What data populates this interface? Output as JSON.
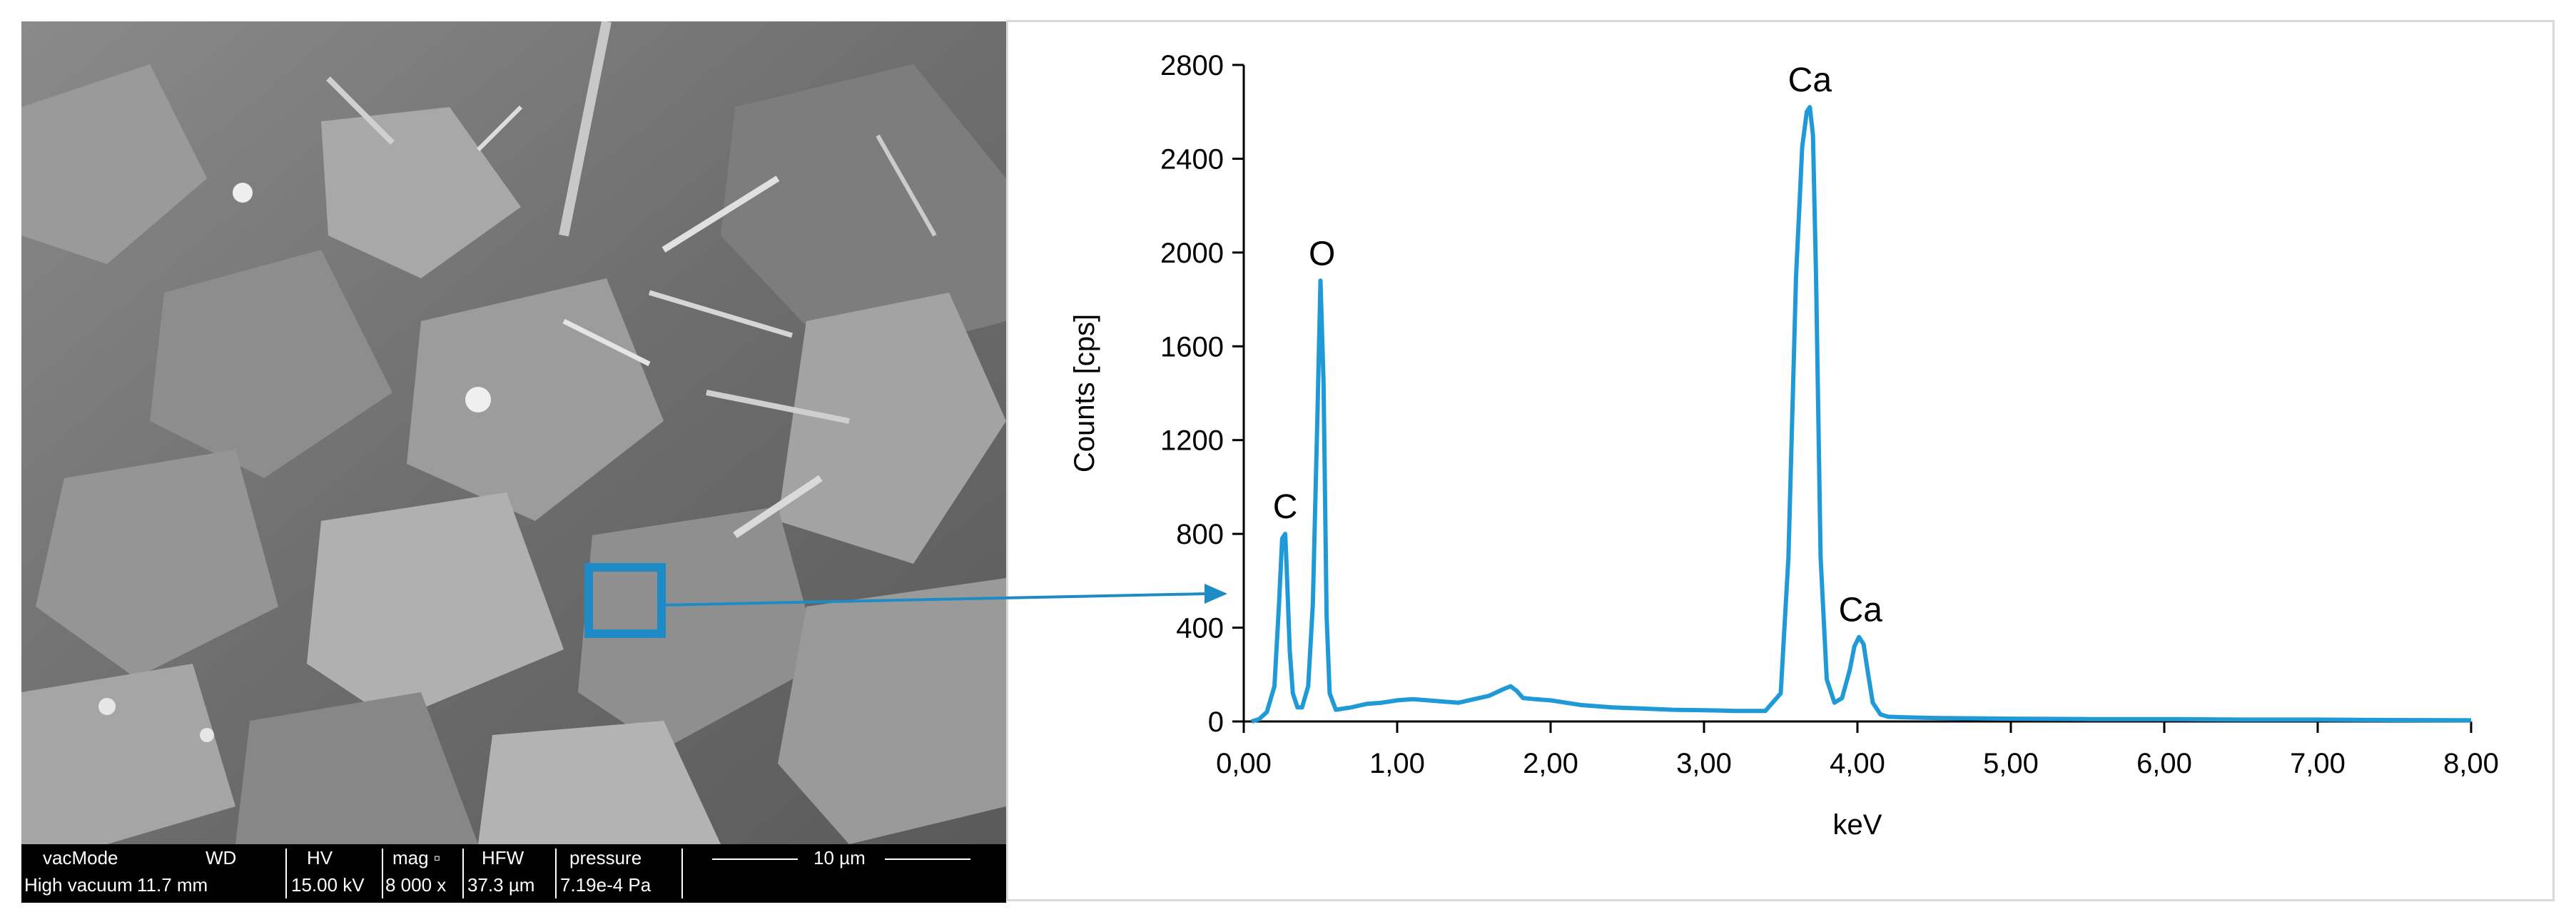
{
  "sem_image": {
    "databar": {
      "headers": [
        "vacMode",
        "WD",
        "HV",
        "mag ▫",
        "HFW",
        "pressure"
      ],
      "values": [
        "High vacuum",
        "11.7 mm",
        "15.00 kV",
        "8 000 x",
        "37.3 µm",
        "7.19e-4 Pa"
      ],
      "scalebar_label": "10 µm"
    },
    "selection_box_color": "#1f8bc6"
  },
  "chart_data": {
    "type": "line",
    "title": "",
    "xlabel": "keV",
    "ylabel": "Counts [cps]",
    "xlim": [
      0,
      8
    ],
    "ylim": [
      0,
      2800
    ],
    "x_ticks": [
      "0,00",
      "1,00",
      "2,00",
      "3,00",
      "4,00",
      "5,00",
      "6,00",
      "7,00",
      "8,00"
    ],
    "y_ticks": [
      "0",
      "400",
      "800",
      "1200",
      "1600",
      "2000",
      "2400",
      "2800"
    ],
    "grid": false,
    "line_color": "#1f9ad6",
    "series": [
      {
        "x": [
          0.05,
          0.1,
          0.15,
          0.2,
          0.23,
          0.25,
          0.27,
          0.28,
          0.3,
          0.32,
          0.35,
          0.38,
          0.42,
          0.45,
          0.48,
          0.5,
          0.52,
          0.54,
          0.56,
          0.6,
          0.65,
          0.7,
          0.8,
          0.9,
          1.0,
          1.1,
          1.2,
          1.3,
          1.4,
          1.5,
          1.6,
          1.7,
          1.74,
          1.78,
          1.82,
          1.9,
          2.0,
          2.1,
          2.2,
          2.4,
          2.6,
          2.8,
          3.0,
          3.2,
          3.4,
          3.5,
          3.55,
          3.6,
          3.64,
          3.67,
          3.69,
          3.71,
          3.73,
          3.76,
          3.8,
          3.85,
          3.9,
          3.95,
          3.98,
          4.01,
          4.04,
          4.07,
          4.1,
          4.15,
          4.2,
          4.3,
          4.5,
          5.0,
          5.5,
          6.0,
          6.5,
          7.0,
          7.5,
          8.0
        ],
        "y": [
          0,
          10,
          40,
          150,
          500,
          780,
          800,
          650,
          300,
          120,
          60,
          60,
          150,
          500,
          1300,
          1880,
          1450,
          450,
          120,
          50,
          55,
          60,
          75,
          80,
          90,
          95,
          90,
          85,
          80,
          95,
          110,
          140,
          150,
          130,
          100,
          95,
          90,
          80,
          70,
          60,
          55,
          50,
          48,
          45,
          45,
          120,
          700,
          1900,
          2450,
          2600,
          2620,
          2500,
          1900,
          700,
          180,
          80,
          100,
          220,
          320,
          360,
          330,
          200,
          80,
          30,
          20,
          18,
          15,
          12,
          10,
          10,
          8,
          8,
          6,
          5
        ]
      }
    ],
    "annotations": [
      {
        "text": "C",
        "x": 0.27,
        "y": 800
      },
      {
        "text": "O",
        "x": 0.51,
        "y": 1880
      },
      {
        "text": "Ca",
        "x": 3.69,
        "y": 2620
      },
      {
        "text": "Ca",
        "x": 4.02,
        "y": 360
      }
    ]
  }
}
